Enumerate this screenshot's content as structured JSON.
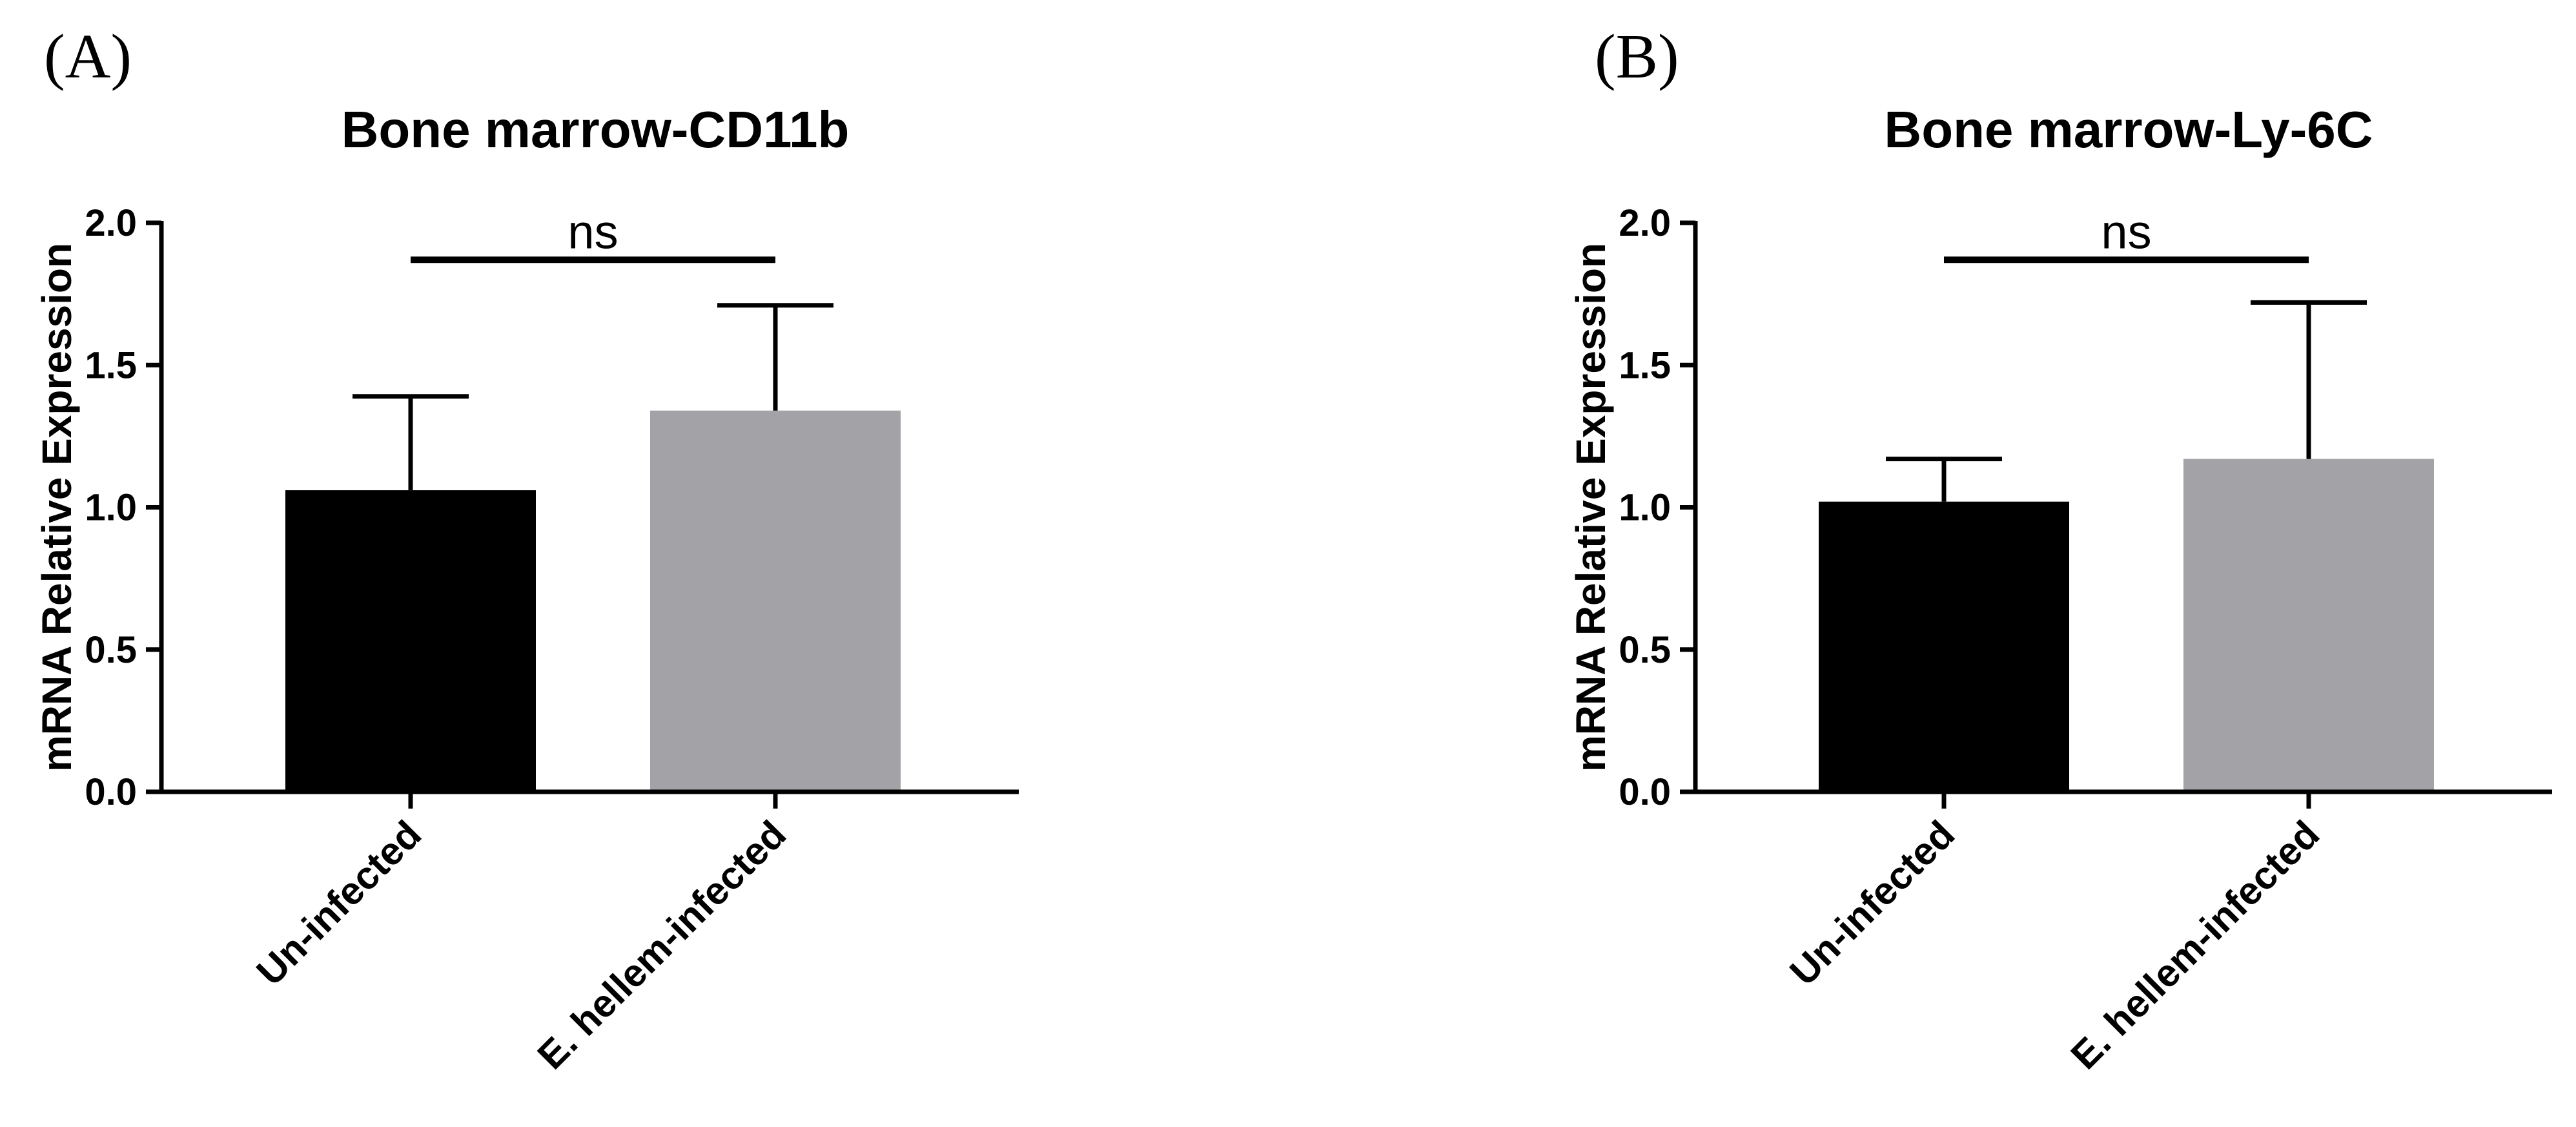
{
  "chart_data": [
    {
      "type": "bar",
      "panel": "(A)",
      "title": "Bone marrow-CD11b",
      "xlabel": "",
      "ylabel": "mRNA Relative Expression",
      "ylim": [
        0,
        2.0
      ],
      "yticks": [
        0.0,
        0.5,
        1.0,
        1.5,
        2.0
      ],
      "ytick_labels": [
        "0.0",
        "0.5",
        "1.0",
        "1.5",
        "2.0"
      ],
      "grid": false,
      "categories": [
        "Un-infected",
        "E. hellem-infected"
      ],
      "values": [
        1.06,
        1.34
      ],
      "errors": [
        0.33,
        0.37
      ],
      "colors": [
        "#000000",
        "#a3a2a7"
      ],
      "significance": {
        "from": 0,
        "to": 1,
        "label": "ns",
        "y": 1.87
      }
    },
    {
      "type": "bar",
      "panel": "(B)",
      "title": "Bone marrow-Ly-6C",
      "xlabel": "",
      "ylabel": "mRNA Relative Expression",
      "ylim": [
        0,
        2.0
      ],
      "yticks": [
        0.0,
        0.5,
        1.0,
        1.5,
        2.0
      ],
      "ytick_labels": [
        "0.0",
        "0.5",
        "1.0",
        "1.5",
        "2.0"
      ],
      "grid": false,
      "categories": [
        "Un-infected",
        "E. hellem-infected"
      ],
      "values": [
        1.02,
        1.17
      ],
      "errors": [
        0.15,
        0.55
      ],
      "colors": [
        "#000000",
        "#a3a2a7"
      ],
      "significance": {
        "from": 0,
        "to": 1,
        "label": "ns",
        "y": 1.87
      }
    }
  ]
}
